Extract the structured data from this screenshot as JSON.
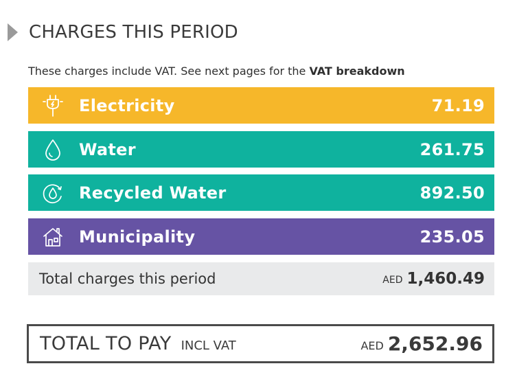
{
  "header": {
    "title": "CHARGES THIS PERIOD",
    "icon": "triangle-right-icon"
  },
  "subtitle": {
    "text": "These charges include VAT. See next pages for the ",
    "strong": "VAT breakdown"
  },
  "charges": [
    {
      "label": "Electricity",
      "amount": "71.19",
      "icon": "electric-plug-icon",
      "color": "#f6b72a"
    },
    {
      "label": "Water",
      "amount": "261.75",
      "icon": "water-drop-icon",
      "color": "#0fb29e"
    },
    {
      "label": "Recycled Water",
      "amount": "892.50",
      "icon": "recycled-water-icon",
      "color": "#0fb29e"
    },
    {
      "label": "Municipality",
      "amount": "235.05",
      "icon": "house-icon",
      "color": "#6653a4"
    }
  ],
  "total_period": {
    "label": "Total charges this period",
    "currency": "AED",
    "amount": "1,460.49"
  },
  "total_to_pay": {
    "label": "TOTAL TO PAY",
    "note": "INCL VAT",
    "currency": "AED",
    "amount": "2,652.96"
  }
}
